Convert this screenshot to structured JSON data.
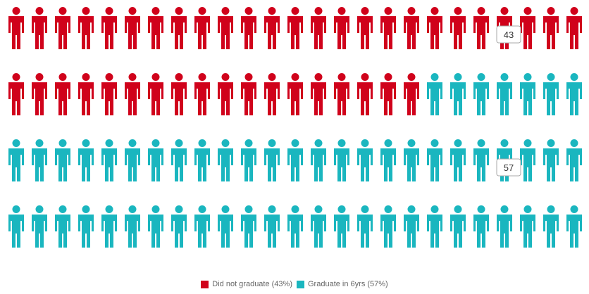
{
  "chart_data": {
    "type": "pictograph",
    "units_per_row": 25,
    "rows": 4,
    "series": [
      {
        "name": "Did not graduate (43%)",
        "value": 43,
        "color": "#d0021b"
      },
      {
        "name": "Graduate in 6yrs (57%)",
        "value": 57,
        "color": "#1ab6bf"
      }
    ],
    "callouts": [
      "43",
      "57"
    ],
    "legend_position": "bottom-center"
  }
}
